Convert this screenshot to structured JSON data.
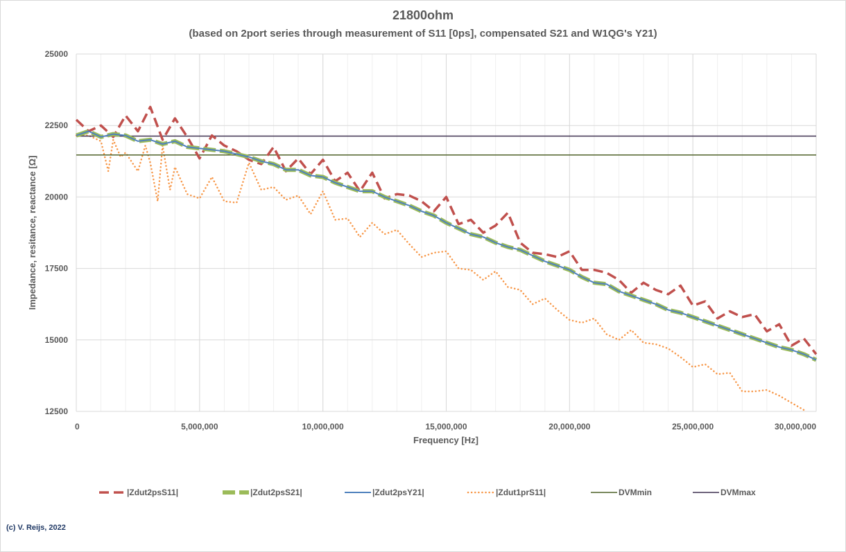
{
  "chart_data": {
    "type": "line",
    "title": "21800ohm",
    "subtitle": "(based on 2port series through measurement of S11 [0ps], compensated S21 and W1QG's Y21)",
    "xlabel": "Frequency [Hz]",
    "ylabel": "Impedance, resitance, reactance [Ω]",
    "xlim": [
      0,
      30000000
    ],
    "ylim": [
      12500,
      25000
    ],
    "x_ticks": [
      0,
      5000000,
      10000000,
      15000000,
      20000000,
      25000000,
      30000000
    ],
    "x_tick_labels": [
      "0",
      "5,000,000",
      "10,000,000",
      "15,000,000",
      "20,000,000",
      "25,000,000",
      "30,000,000"
    ],
    "y_ticks": [
      12500,
      15000,
      17500,
      20000,
      22500,
      25000
    ],
    "y_tick_labels": [
      "12500",
      "15000",
      "17500",
      "20000",
      "22500",
      "25000"
    ],
    "grid": true,
    "legend_position": "bottom",
    "series": [
      {
        "name": "|Zdut2psS11|",
        "color": "#c0504d",
        "style": "dashed",
        "x": [
          0,
          500000,
          1000000,
          1500000,
          2000000,
          2500000,
          3000000,
          3500000,
          4000000,
          4500000,
          5000000,
          5500000,
          6000000,
          6500000,
          7000000,
          7500000,
          8000000,
          8500000,
          9000000,
          9500000,
          10000000,
          10500000,
          11000000,
          11500000,
          12000000,
          12500000,
          13000000,
          13500000,
          14000000,
          14500000,
          15000000,
          15500000,
          16000000,
          16500000,
          17000000,
          17500000,
          18000000,
          18500000,
          19000000,
          19500000,
          20000000,
          20500000,
          21000000,
          21500000,
          22000000,
          22500000,
          23000000,
          23500000,
          24000000,
          24500000,
          25000000,
          25500000,
          26000000,
          26500000,
          27000000,
          27500000,
          28000000,
          28500000,
          29000000,
          29500000,
          30000000
        ],
        "y": [
          22700,
          22300,
          22500,
          22100,
          22850,
          22300,
          23150,
          22000,
          22750,
          22100,
          21350,
          22150,
          21800,
          21600,
          21300,
          21150,
          21750,
          20900,
          21350,
          20800,
          21300,
          20550,
          20850,
          20200,
          20850,
          19950,
          20100,
          20050,
          19850,
          19500,
          20000,
          19050,
          19200,
          18750,
          19000,
          19450,
          18400,
          18050,
          18000,
          17900,
          18100,
          17450,
          17450,
          17350,
          17100,
          16650,
          17000,
          16750,
          16600,
          16900,
          16200,
          16350,
          15750,
          16000,
          15800,
          15900,
          15300,
          15550,
          14800,
          15050,
          14500
        ]
      },
      {
        "name": "|Zdut2psS21|",
        "color": "#9bbb59",
        "style": "thick-dashed",
        "x": [
          0,
          500000,
          1000000,
          1500000,
          2000000,
          2500000,
          3000000,
          3500000,
          4000000,
          4500000,
          5000000,
          5500000,
          6000000,
          6500000,
          7000000,
          7500000,
          8000000,
          8500000,
          9000000,
          9500000,
          10000000,
          10500000,
          11000000,
          11500000,
          12000000,
          12500000,
          13000000,
          13500000,
          14000000,
          14500000,
          15000000,
          15500000,
          16000000,
          16500000,
          17000000,
          17500000,
          18000000,
          18500000,
          19000000,
          19500000,
          20000000,
          20500000,
          21000000,
          21500000,
          22000000,
          22500000,
          23000000,
          23500000,
          24000000,
          24500000,
          25000000,
          25500000,
          26000000,
          26500000,
          27000000,
          27500000,
          28000000,
          28500000,
          29000000,
          29500000,
          30000000
        ],
        "y": [
          22150,
          22300,
          22100,
          22200,
          22150,
          21950,
          22000,
          21850,
          21950,
          21750,
          21700,
          21650,
          21600,
          21500,
          21400,
          21250,
          21150,
          20950,
          20950,
          20750,
          20700,
          20500,
          20350,
          20200,
          20200,
          20000,
          19850,
          19700,
          19500,
          19350,
          19100,
          18900,
          18700,
          18600,
          18400,
          18250,
          18150,
          17950,
          17750,
          17600,
          17450,
          17200,
          17000,
          16950,
          16700,
          16550,
          16400,
          16250,
          16050,
          15950,
          15800,
          15650,
          15500,
          15350,
          15200,
          15050,
          14900,
          14750,
          14650,
          14500,
          14300
        ]
      },
      {
        "name": "|Zdut2psY21|",
        "color": "#4f81bd",
        "style": "solid",
        "x": [
          0,
          500000,
          1000000,
          1500000,
          2000000,
          2500000,
          3000000,
          3500000,
          4000000,
          4500000,
          5000000,
          5500000,
          6000000,
          6500000,
          7000000,
          7500000,
          8000000,
          8500000,
          9000000,
          9500000,
          10000000,
          10500000,
          11000000,
          11500000,
          12000000,
          12500000,
          13000000,
          13500000,
          14000000,
          14500000,
          15000000,
          15500000,
          16000000,
          16500000,
          17000000,
          17500000,
          18000000,
          18500000,
          19000000,
          19500000,
          20000000,
          20500000,
          21000000,
          21500000,
          22000000,
          22500000,
          23000000,
          23500000,
          24000000,
          24500000,
          25000000,
          25500000,
          26000000,
          26500000,
          27000000,
          27500000,
          28000000,
          28500000,
          29000000,
          29500000,
          30000000
        ],
        "y": [
          22150,
          22300,
          22100,
          22200,
          22150,
          21950,
          22000,
          21850,
          21950,
          21750,
          21700,
          21650,
          21600,
          21500,
          21400,
          21250,
          21150,
          20950,
          20950,
          20750,
          20700,
          20500,
          20350,
          20200,
          20200,
          20000,
          19850,
          19700,
          19500,
          19350,
          19100,
          18900,
          18700,
          18600,
          18400,
          18250,
          18150,
          17950,
          17750,
          17600,
          17450,
          17200,
          17000,
          16950,
          16700,
          16550,
          16400,
          16250,
          16050,
          15950,
          15800,
          15650,
          15500,
          15350,
          15200,
          15050,
          14900,
          14750,
          14650,
          14500,
          14300
        ]
      },
      {
        "name": "|Zdut1prS11|",
        "color": "#f79646",
        "style": "dotted",
        "x": [
          0,
          500000,
          1000000,
          1300000,
          1500000,
          1800000,
          2000000,
          2500000,
          2800000,
          3000000,
          3300000,
          3500000,
          3800000,
          4000000,
          4500000,
          5000000,
          5500000,
          6000000,
          6500000,
          7000000,
          7500000,
          8000000,
          8500000,
          9000000,
          9500000,
          10000000,
          10500000,
          11000000,
          11500000,
          12000000,
          12500000,
          13000000,
          13500000,
          14000000,
          14500000,
          15000000,
          15500000,
          16000000,
          16500000,
          17000000,
          17500000,
          18000000,
          18500000,
          19000000,
          19500000,
          20000000,
          20500000,
          21000000,
          21500000,
          22000000,
          22500000,
          23000000,
          23500000,
          24000000,
          24500000,
          25000000,
          25500000,
          26000000,
          26500000,
          27000000,
          27500000,
          28000000,
          28500000,
          29000000,
          29500000
        ],
        "y": [
          22150,
          22150,
          21950,
          20900,
          22000,
          21400,
          21550,
          20900,
          21800,
          21200,
          19850,
          21800,
          20250,
          21050,
          20100,
          19950,
          20700,
          19850,
          19800,
          21200,
          20250,
          20350,
          19900,
          20050,
          19400,
          20200,
          19200,
          19250,
          18600,
          19100,
          18700,
          18850,
          18350,
          17900,
          18050,
          18100,
          17500,
          17450,
          17100,
          17400,
          16850,
          16750,
          16250,
          16450,
          16050,
          15700,
          15600,
          15750,
          15200,
          15000,
          15350,
          14900,
          14850,
          14700,
          14400,
          14050,
          14150,
          13800,
          13850,
          13200,
          13200,
          13250,
          13050,
          12800,
          12550
        ]
      },
      {
        "name": "DVMmin",
        "color": "#4f6228",
        "style": "solid",
        "x": [
          0,
          30000000
        ],
        "y": [
          21470,
          21470
        ]
      },
      {
        "name": "DVMmax",
        "color": "#3f3151",
        "style": "solid",
        "x": [
          0,
          30000000
        ],
        "y": [
          22130,
          22130
        ]
      }
    ],
    "credit": "(c) V. Reijs, 2022"
  }
}
